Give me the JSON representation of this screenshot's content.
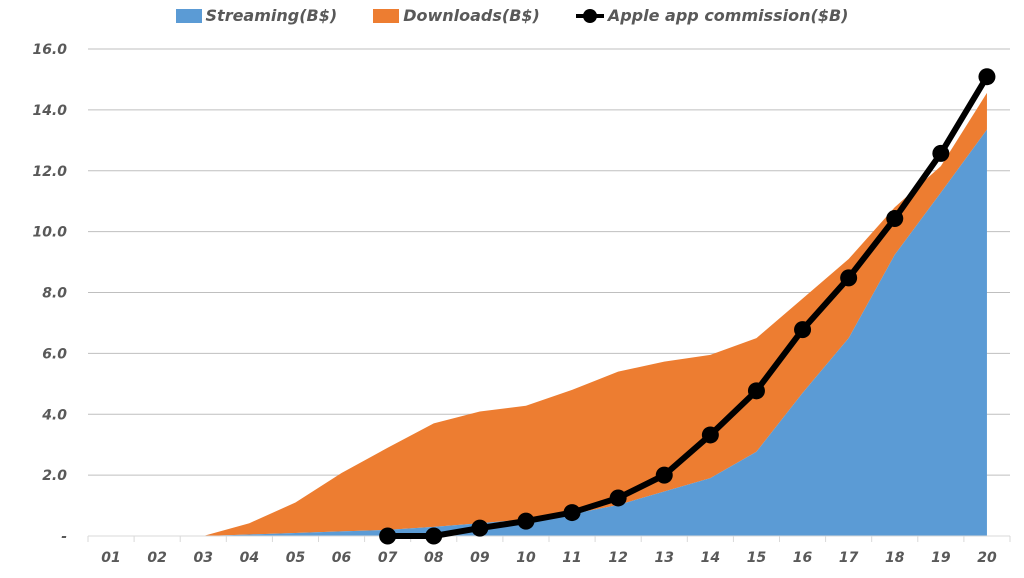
{
  "chart_data": {
    "type": "area",
    "title": "",
    "xlabel": "",
    "ylabel": "",
    "categories": [
      "01",
      "02",
      "03",
      "04",
      "05",
      "06",
      "07",
      "08",
      "09",
      "10",
      "11",
      "12",
      "13",
      "14",
      "15",
      "16",
      "17",
      "18",
      "19",
      "20"
    ],
    "ylim": [
      0,
      16
    ],
    "yticks": [
      0,
      2,
      4,
      6,
      8,
      10,
      12,
      14,
      16
    ],
    "ytick_labels": [
      "-",
      "2.0",
      "4.0",
      "6.0",
      "8.0",
      "10.0",
      "12.0",
      "14.0",
      "16.0"
    ],
    "grid": true,
    "legend_position": "top",
    "stacked": true,
    "series": [
      {
        "name": "Streaming(B$)",
        "type": "area",
        "color": "#5B9BD5",
        "values": [
          0,
          0,
          0,
          0.05,
          0.1,
          0.15,
          0.2,
          0.3,
          0.42,
          0.55,
          0.72,
          1.02,
          1.46,
          1.9,
          2.77,
          4.7,
          6.5,
          9.24,
          11.28,
          13.35
        ]
      },
      {
        "name": "Downloads(B$)",
        "type": "area",
        "color": "#ED7D31",
        "values": [
          0,
          0,
          0,
          0.37,
          1.0,
          1.92,
          2.7,
          3.4,
          3.67,
          3.73,
          4.08,
          4.38,
          4.27,
          4.05,
          3.73,
          3.1,
          2.6,
          1.56,
          0.87,
          1.21
        ]
      },
      {
        "name": "Apple app commission($B)",
        "type": "line",
        "color": "#000000",
        "values": [
          null,
          null,
          null,
          null,
          null,
          null,
          0,
          0,
          0.26,
          0.49,
          0.77,
          1.25,
          2.0,
          3.32,
          4.77,
          6.78,
          8.48,
          10.43,
          12.57,
          15.09
        ]
      }
    ]
  }
}
